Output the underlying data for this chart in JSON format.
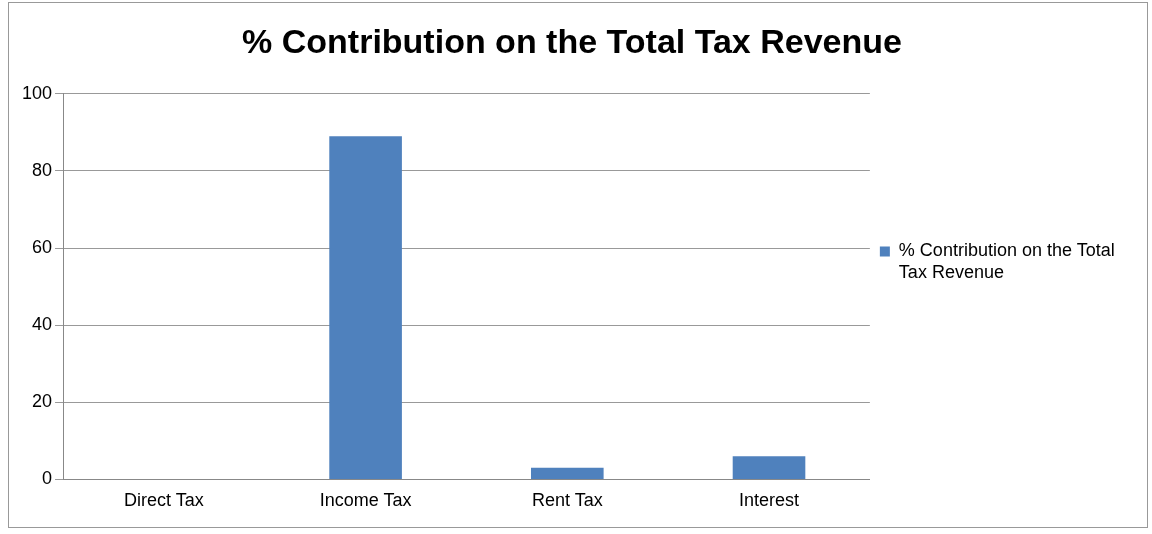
{
  "chart_data": {
    "type": "bar",
    "title": "% Contribution on the Total Tax Revenue",
    "categories": [
      "Direct Tax",
      "Income Tax",
      "Rent Tax",
      "Interest"
    ],
    "series": [
      {
        "name": "% Contribution on the Total Tax Revenue",
        "color": "#4f81bd",
        "values": [
          0,
          89,
          3,
          6
        ]
      }
    ],
    "ylim": [
      0,
      100
    ],
    "yticks": [
      0,
      20,
      40,
      60,
      80,
      100
    ],
    "grid": "y",
    "legend": "right"
  }
}
